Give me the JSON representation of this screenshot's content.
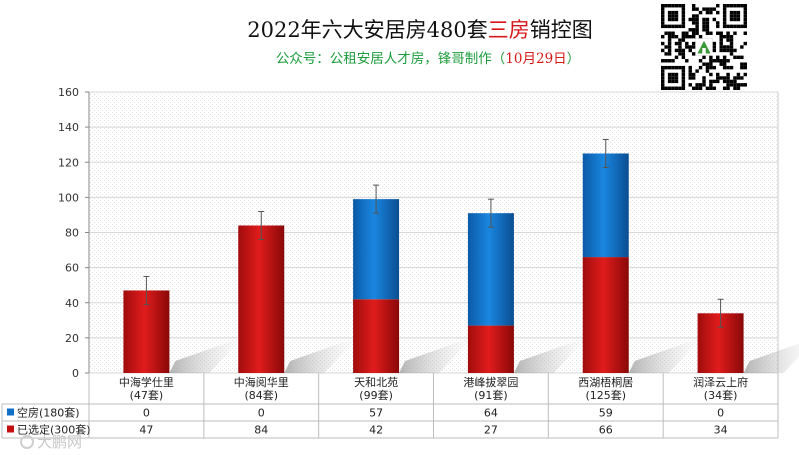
{
  "title": {
    "prefix": "2022年六大安居房480套",
    "highlight": "三房",
    "suffix": "销控图"
  },
  "subtitle": {
    "main": "公众号：公租安居人才房，锋哥制作（",
    "date": "10月29日",
    "close": "）"
  },
  "watermark": "大鹏网",
  "colors": {
    "empty": "#1070c8",
    "selected": "#c41010",
    "grid": "#d8d8d8",
    "axis": "#888888"
  },
  "chart_data": {
    "type": "bar",
    "stacked": true,
    "ylim": [
      0,
      160
    ],
    "yticks": [
      0,
      20,
      40,
      60,
      80,
      100,
      120,
      140,
      160
    ],
    "grid": true,
    "categories": [
      {
        "name": "中海学仕里",
        "sub": "(47套)"
      },
      {
        "name": "中海阅华里",
        "sub": "(84套)"
      },
      {
        "name": "天和北苑",
        "sub": "(99套)"
      },
      {
        "name": "港峰拔翠园",
        "sub": "(91套)"
      },
      {
        "name": "西湖梧桐居",
        "sub": "(125套)"
      },
      {
        "name": "润泽云上府",
        "sub": "(34套)"
      }
    ],
    "series": [
      {
        "name": "空房(180套)",
        "color": "#1070c8",
        "values": [
          0,
          0,
          57,
          64,
          59,
          0
        ]
      },
      {
        "name": "已选定(300套)",
        "color": "#c41010",
        "values": [
          47,
          84,
          42,
          27,
          66,
          34
        ]
      }
    ],
    "table_rows": [
      {
        "label": "空房(180套)",
        "values": [
          "0",
          "0",
          "57",
          "64",
          "59",
          "0"
        ]
      },
      {
        "label": "已选定(300套)",
        "values": [
          "47",
          "84",
          "42",
          "27",
          "66",
          "34"
        ]
      }
    ]
  }
}
